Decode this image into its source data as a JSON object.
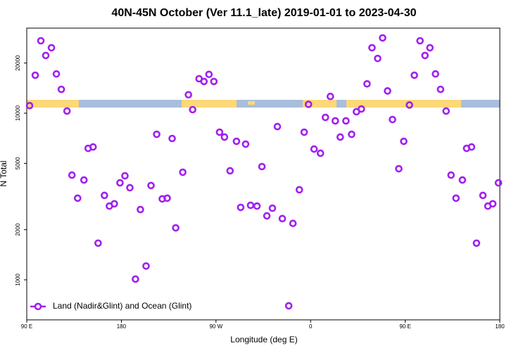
{
  "chart_data": {
    "type": "scatter",
    "title": "40N-45N October (Ver 11.1_late)   2019-01-01 to 2023-04-30",
    "xlabel": "Longitude (deg E)",
    "ylabel": "N Total",
    "xlim": [
      90,
      540
    ],
    "ylim": [
      575,
      32400
    ],
    "log_y": true,
    "grid": false,
    "legend": "lower left",
    "xticks": [
      {
        "value": 90,
        "label": "90 E"
      },
      180,
      {
        "value": 270,
        "label": "90 W"
      },
      {
        "value": 360,
        "label": "0"
      },
      {
        "value": 450,
        "label": "90 E"
      },
      {
        "value": 540,
        "label": "180"
      }
    ],
    "yticks": [
      1000,
      2000,
      5000,
      10000,
      20000
    ],
    "series": [
      {
        "name": "Land (Nadir&Glint) and Ocean (Glint)",
        "color": "#a020f0",
        "x": [
          92.7,
          98.1,
          103.4,
          108.1,
          113.5,
          118.2,
          122.9,
          128.3,
          133.0,
          138.4,
          144.4,
          148.4,
          153.1,
          157.9,
          163.9,
          168.6,
          173.3,
          178.7,
          183.4,
          188.1,
          193.4,
          198.1,
          203.5,
          208.2,
          213.6,
          218.9,
          223.6,
          228.3,
          231.7,
          238.4,
          243.8,
          247.8,
          253.9,
          258.6,
          263.3,
          268.0,
          273.4,
          278.1,
          283.4,
          289.5,
          293.5,
          298.2,
          302.9,
          309.0,
          313.7,
          318.4,
          323.7,
          328.4,
          333.1,
          339.2,
          343.2,
          349.3,
          353.9,
          358.0,
          363.3,
          369.4,
          374.1,
          378.8,
          383.5,
          388.2,
          393.6,
          399.0,
          403.6,
          408.3,
          413.7,
          418.4,
          423.8,
          428.5,
          433.2,
          437.9,
          443.9,
          448.6,
          454.0,
          458.7,
          464.1,
          468.8,
          473.5,
          478.8,
          483.6,
          488.9,
          493.6,
          498.3,
          504.4,
          508.4,
          513.1,
          517.8,
          523.9,
          528.6,
          533.3,
          538.7
        ],
        "values": [
          11100,
          16900,
          27200,
          22200,
          24700,
          17200,
          13900,
          10300,
          4250,
          3090,
          3970,
          6150,
          6270,
          1660,
          3210,
          2770,
          2860,
          3820,
          4210,
          3570,
          1010,
          2640,
          1210,
          3680,
          7470,
          3060,
          3090,
          7050,
          2050,
          4420,
          12900,
          10500,
          16100,
          15500,
          17100,
          15500,
          7690,
          7190,
          4510,
          6780,
          2720,
          6520,
          2800,
          2770,
          4780,
          2420,
          2690,
          8310,
          2330,
          698,
          2180,
          3470,
          7690,
          11300,
          6090,
          5750,
          9430,
          12600,
          8990,
          7190,
          8990,
          7470,
          10200,
          10600,
          15000,
          24700,
          21300,
          28300,
          13600,
          9160,
          4640,
          6780,
          11200,
          16900,
          27200,
          22200,
          24700,
          17200,
          13900,
          10300,
          4250,
          3090,
          3970,
          6150,
          6270,
          1660,
          3210,
          2770,
          2860,
          3820
        ]
      }
    ]
  }
}
